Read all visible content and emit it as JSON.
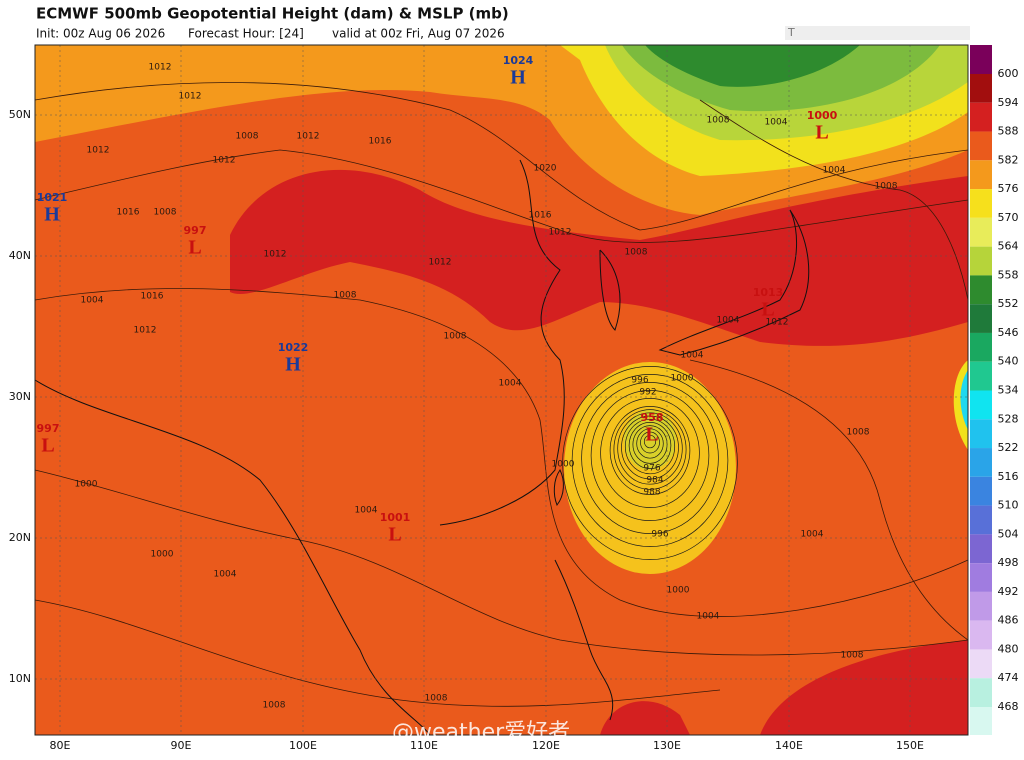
{
  "header": {
    "title": "ECMWF 500mb Geopotential Height (dam) & MSLP (mb)",
    "init": "Init: 00z Aug 06 2026",
    "forecast": "Forecast Hour: [24]",
    "valid": "valid at 00z Fri, Aug 07 2026",
    "corner_mark": "T"
  },
  "colorbar": {
    "labels": [
      "600",
      "594",
      "588",
      "582",
      "576",
      "570",
      "564",
      "558",
      "552",
      "546",
      "540",
      "534",
      "528",
      "522",
      "516",
      "510",
      "504",
      "498",
      "492",
      "486",
      "480",
      "474",
      "468"
    ],
    "colors": [
      "#7a005a",
      "#a20e0e",
      "#d42020",
      "#ea5a1c",
      "#f4991c",
      "#f6e01c",
      "#e8ec5a",
      "#b6d43a",
      "#2e8b2e",
      "#1f7a3a",
      "#1aa860",
      "#20c890",
      "#10e4f0",
      "#20c2ee",
      "#2aa4e8",
      "#3a84e0",
      "#5870d8",
      "#7c66d2",
      "#a07ce0",
      "#c09ae8",
      "#dab8f0",
      "#ecdaf6",
      "#b8f0e0",
      "#d8f8f0"
    ]
  },
  "axes": {
    "lat_labels": [
      "50N",
      "40N",
      "30N",
      "20N",
      "10N"
    ],
    "lon_labels": [
      "80E",
      "90E",
      "100E",
      "110E",
      "120E",
      "130E",
      "140E",
      "150E"
    ]
  },
  "centers": [
    {
      "letter": "H",
      "value": "1024"
    },
    {
      "letter": "H",
      "value": "1021"
    },
    {
      "letter": "H",
      "value": "1022"
    },
    {
      "letter": "L",
      "value": "1000"
    },
    {
      "letter": "L",
      "value": "997"
    },
    {
      "letter": "L",
      "value": "997"
    },
    {
      "letter": "L",
      "value": "958"
    },
    {
      "letter": "L",
      "value": "1001"
    },
    {
      "letter": "L",
      "value": "1013"
    }
  ],
  "isobar_labels": [
    "1012",
    "1012",
    "1012",
    "1012",
    "1008",
    "1012",
    "1016",
    "1020",
    "1016",
    "1012",
    "1012",
    "1008",
    "1008",
    "1004",
    "1004",
    "1008",
    "1008",
    "1004",
    "1004",
    "1000",
    "996",
    "1000",
    "996",
    "992",
    "976",
    "984",
    "988",
    "1000",
    "1004",
    "1004",
    "1008",
    "1008",
    "1012",
    "1004",
    "1016",
    "1012",
    "1000",
    "1000",
    "1004",
    "1004",
    "1008",
    "1008",
    "1008",
    "1004",
    "1012",
    "1016",
    "1008"
  ],
  "watermark": "@weather爱好者"
}
